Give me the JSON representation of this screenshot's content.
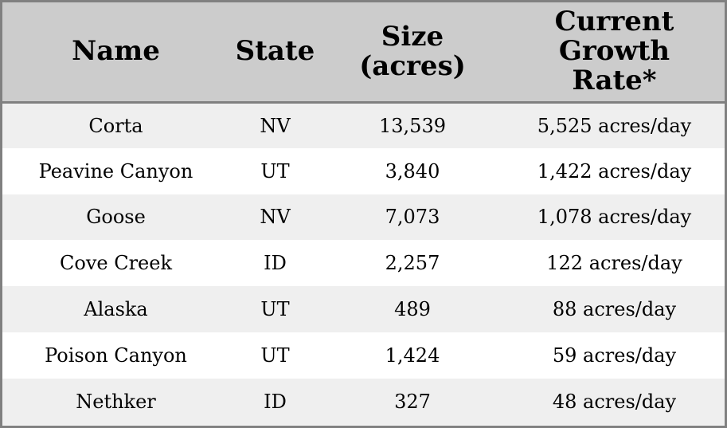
{
  "table": {
    "headers": {
      "name": "Name",
      "state": "State",
      "size_line1": "Size",
      "size_line2": "(acres)",
      "rate_line1": "Current",
      "rate_line2": "Growth",
      "rate_line3": "Rate*"
    },
    "rows": [
      {
        "name": "Corta",
        "state": "NV",
        "size": "13,539",
        "rate": "5,525 acres/day"
      },
      {
        "name": "Peavine Canyon",
        "state": "UT",
        "size": "3,840",
        "rate": "1,422 acres/day"
      },
      {
        "name": "Goose",
        "state": "NV",
        "size": "7,073",
        "rate": "1,078 acres/day"
      },
      {
        "name": "Cove Creek",
        "state": "ID",
        "size": "2,257",
        "rate": "122 acres/day"
      },
      {
        "name": "Alaska",
        "state": "UT",
        "size": "489",
        "rate": "88 acres/day"
      },
      {
        "name": "Poison Canyon",
        "state": "UT",
        "size": "1,424",
        "rate": "59 acres/day"
      },
      {
        "name": "Nethker",
        "state": "ID",
        "size": "327",
        "rate": "48 acres/day"
      }
    ]
  },
  "colors": {
    "header_bg": "#cccccc",
    "row_odd_bg": "#efefef",
    "row_even_bg": "#ffffff",
    "border": "#808080"
  }
}
